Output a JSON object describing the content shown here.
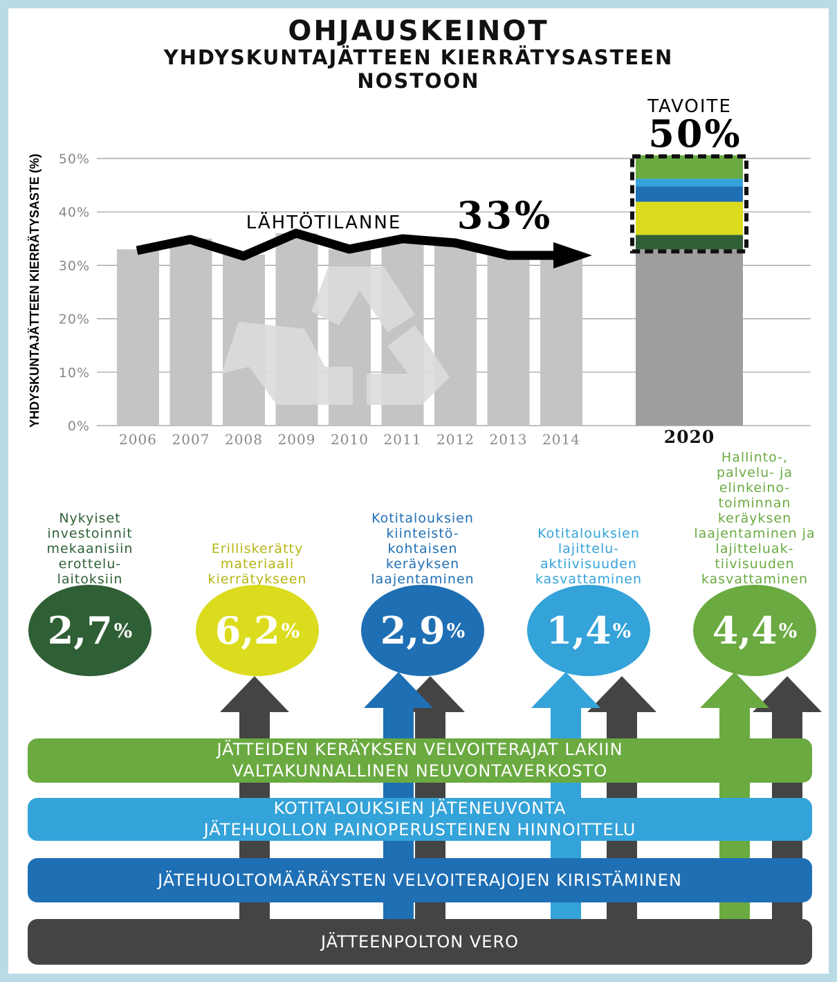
{
  "title": {
    "main": "OHJAUSKEINOT",
    "line1": "YHDYSKUNTAJÄTTEEN KIERRÄTYSASTEEN",
    "line2": "NOSTOON"
  },
  "chart_data": {
    "type": "bar",
    "categories": [
      "2006",
      "2007",
      "2008",
      "2009",
      "2010",
      "2011",
      "2012",
      "2013",
      "2014"
    ],
    "values": [
      33,
      35,
      32,
      36,
      33,
      35,
      34,
      32,
      32
    ],
    "ylabel": "YHDYSKUNTAJÄTTEEN KIERRÄTYSASTE (%)",
    "ylim": [
      0,
      50
    ],
    "yticks": [
      "0%",
      "10%",
      "20%",
      "30%",
      "40%",
      "50%"
    ],
    "grid": true,
    "baseline_label": "LÄHTÖTILANNE",
    "baseline_value": "33%",
    "target": {
      "category": "2020",
      "label": "TAVOITE",
      "value_label": "50%",
      "total": 50,
      "base": 33,
      "segments": [
        {
          "value": 2.7,
          "color": "#2f5f35"
        },
        {
          "value": 6.2,
          "color": "#dcdc1e"
        },
        {
          "value": 2.9,
          "color": "#1f6fb5"
        },
        {
          "value": 1.4,
          "color": "#34a3d9"
        },
        {
          "value": 4.4,
          "color": "#6aaa41"
        }
      ]
    }
  },
  "measures": [
    {
      "caption": "Nykyiset\ninvestoinnit\nmekaanisiin\nerottelu-\nlaitoksiin",
      "value": "2,7",
      "unit": "%",
      "color": "#2f5f35"
    },
    {
      "caption": "Erilliskerätty\nmateriaali\nkierrätykseen",
      "value": "6,2",
      "unit": "%",
      "color": "#dcdc1e"
    },
    {
      "caption": "Kotitalouksien\nkiinteistö-\nkohtaisen\nkeräyksen\nlaajentaminen",
      "value": "2,9",
      "unit": "%",
      "color": "#1f6fb5"
    },
    {
      "caption": "Kotitalouksien\nlajittelu-\naktiivisuuden\nkasvattaminen",
      "value": "1,4",
      "unit": "%",
      "color": "#34a3d9"
    },
    {
      "caption": "Hallinto-,\npalvelu- ja\nelinkeino-\ntoiminnan\nkeräyksen\nlaajentaminen ja\nlajitteluak-\ntiivisuuden\nkasvattaminen",
      "value": "4,4",
      "unit": "%",
      "color": "#6aaa41"
    }
  ],
  "bands": [
    {
      "text": "JÄTTEIDEN KERÄYKSEN VELVOITERAJAT LAKIIN\nVALTAKUNNALLINEN NEUVONTAVERKOSTO",
      "color": "#6aaa41"
    },
    {
      "text": "KOTITALOUKSIEN JÄTENEUVONTA\nJÄTEHUOLLON PAINOPERUSTEINEN HINNOITTELU",
      "color": "#34a3d9"
    },
    {
      "text": "JÄTEHUOLTOMÄÄRÄYSTEN VELVOITERAJOJEN KIRISTÄMINEN",
      "color": "#1f6fb5"
    },
    {
      "text": "JÄTTEENPOLTON VERO",
      "color": "#444444"
    }
  ]
}
